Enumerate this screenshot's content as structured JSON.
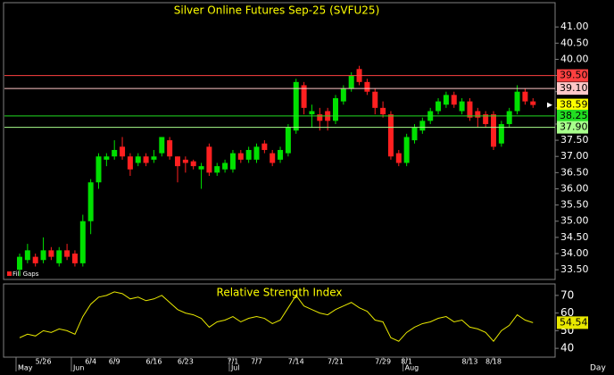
{
  "chart_data": [
    {
      "type": "candlestick",
      "title": "Silver Online Futures Sep-25 (SVFU25)",
      "annotation": "Fill Gaps",
      "x_label": "Day",
      "up_color": "#00e000",
      "down_color": "#ff2020",
      "open": [
        33.5,
        33.8,
        33.9,
        33.8,
        34.1,
        33.7,
        34.1,
        34.0,
        33.7,
        35.0,
        36.2,
        36.9,
        37.0,
        37.3,
        37.0,
        36.8,
        37.0,
        36.9,
        37.1,
        37.5,
        37.0,
        36.9,
        36.85,
        36.6,
        37.3,
        36.5,
        36.6,
        36.6,
        37.1,
        36.9,
        36.9,
        37.4,
        37.1,
        36.9,
        37.1,
        37.8,
        39.2,
        38.3,
        38.3,
        38.4,
        38.1,
        38.7,
        39.1,
        39.7,
        39.3,
        39.0,
        38.5,
        38.3,
        37.1,
        36.8,
        37.5,
        37.8,
        38.1,
        38.4,
        38.6,
        38.9,
        38.4,
        38.7,
        38.4,
        38.3,
        38.3,
        37.4,
        38.0,
        38.4,
        39.0,
        38.7
      ],
      "high": [
        34.0,
        34.3,
        34.0,
        34.5,
        34.2,
        34.2,
        34.3,
        34.1,
        35.2,
        36.3,
        37.1,
        37.1,
        37.5,
        37.6,
        37.1,
        37.1,
        37.1,
        37.2,
        37.6,
        37.6,
        37.0,
        37.0,
        36.9,
        36.8,
        37.4,
        36.8,
        36.9,
        37.2,
        37.2,
        37.3,
        37.4,
        37.5,
        37.2,
        37.3,
        38.0,
        39.4,
        39.3,
        38.6,
        38.5,
        38.5,
        38.9,
        39.2,
        39.6,
        39.8,
        39.4,
        39.1,
        38.7,
        38.4,
        37.2,
        37.7,
        38.0,
        38.2,
        38.5,
        38.8,
        39.0,
        39.0,
        38.8,
        38.8,
        38.5,
        38.4,
        38.4,
        38.1,
        38.5,
        39.2,
        39.1,
        38.8
      ],
      "low": [
        33.3,
        33.7,
        33.6,
        33.7,
        33.8,
        33.6,
        33.8,
        33.6,
        33.6,
        34.6,
        36.0,
        36.7,
        36.9,
        36.9,
        36.4,
        36.7,
        36.7,
        36.8,
        37.0,
        36.9,
        36.2,
        36.5,
        36.6,
        36.0,
        36.4,
        36.4,
        36.5,
        36.5,
        36.8,
        36.8,
        36.8,
        37.1,
        36.7,
        36.8,
        37.0,
        37.7,
        38.3,
        37.9,
        37.8,
        37.8,
        38.0,
        38.6,
        39.0,
        39.2,
        38.9,
        38.3,
        38.2,
        36.9,
        36.7,
        36.7,
        37.4,
        37.7,
        38.0,
        38.3,
        38.5,
        38.5,
        38.3,
        38.1,
        37.9,
        37.9,
        37.2,
        37.3,
        37.9,
        38.3,
        38.6,
        38.5
      ],
      "close": [
        33.9,
        34.1,
        33.7,
        34.1,
        33.9,
        34.1,
        33.9,
        33.7,
        35.0,
        36.2,
        37.0,
        37.0,
        37.2,
        37.0,
        36.6,
        37.0,
        36.8,
        37.0,
        37.6,
        37.0,
        36.7,
        36.8,
        36.7,
        36.7,
        36.5,
        36.7,
        36.8,
        37.1,
        36.9,
        37.2,
        37.3,
        37.2,
        36.8,
        37.2,
        37.9,
        39.3,
        38.5,
        38.4,
        38.1,
        38.1,
        38.8,
        39.1,
        39.5,
        39.3,
        39.0,
        38.5,
        38.3,
        37.0,
        36.8,
        37.6,
        37.9,
        38.1,
        38.4,
        38.7,
        38.9,
        38.6,
        38.7,
        38.2,
        38.2,
        38.0,
        37.3,
        38.0,
        38.4,
        39.0,
        38.7,
        38.59
      ],
      "ylim": [
        33.2,
        41.75
      ],
      "yticks": [
        {
          "value": 33.5,
          "label": "33.50"
        },
        {
          "value": 34,
          "label": "34.00"
        },
        {
          "value": 34.5,
          "label": "34.50"
        },
        {
          "value": 35,
          "label": "35.00"
        },
        {
          "value": 35.5,
          "label": "35.50"
        },
        {
          "value": 36,
          "label": "36.00"
        },
        {
          "value": 36.5,
          "label": "36.50"
        },
        {
          "value": 37,
          "label": "37.00"
        },
        {
          "value": 37.5,
          "label": "37.50"
        },
        {
          "value": 38,
          "label": "38.00"
        },
        {
          "value": 38.5,
          "label": "38.50"
        },
        {
          "value": 39,
          "label": "39.00"
        },
        {
          "value": 39.5,
          "label": "39.50"
        },
        {
          "value": 40,
          "label": "40.00"
        },
        {
          "value": 40.5,
          "label": "40.50"
        },
        {
          "value": 41,
          "label": "41.00"
        }
      ],
      "levels": [
        {
          "value": 39.5,
          "label": "39.50",
          "color": "#ff4040",
          "line": true
        },
        {
          "value": 39.1,
          "label": "39.10",
          "color": "#ffc8c8",
          "line": true
        },
        {
          "value": 38.59,
          "color": "#ffff00",
          "line": false
        },
        {
          "value": 38.25,
          "color": "#22dd22",
          "line": true
        },
        {
          "value": 37.9,
          "label": "37.90",
          "color": "#a8ff8c",
          "line": true
        }
      ],
      "xticks": [
        {
          "value": 3,
          "label": "5/26"
        },
        {
          "value": 9,
          "label": "6/4"
        },
        {
          "value": 12,
          "label": "6/9"
        },
        {
          "value": 17,
          "label": "6/16"
        },
        {
          "value": 21,
          "label": "6/23"
        },
        {
          "value": 27,
          "label": "7/1"
        },
        {
          "value": 30,
          "label": "7/7"
        },
        {
          "value": 35,
          "label": "7/14"
        },
        {
          "value": 40,
          "label": "7/21"
        },
        {
          "value": 46,
          "label": "7/29"
        },
        {
          "value": 49,
          "label": "8/1"
        },
        {
          "value": 57,
          "label": "8/13"
        },
        {
          "value": 60,
          "label": "8/18"
        }
      ],
      "month_ticks": [
        {
          "value": 0,
          "label": "May"
        },
        {
          "value": 7,
          "label": "Jun"
        },
        {
          "value": 27,
          "label": "Jul"
        },
        {
          "value": 49,
          "label": "Aug"
        }
      ]
    },
    {
      "type": "line",
      "title": "Relative Strength Index",
      "color": "#e8e800",
      "values": [
        46,
        48,
        47,
        50,
        49,
        51,
        50,
        48,
        58,
        65,
        69,
        70,
        72,
        71,
        68,
        69,
        67,
        68,
        70,
        66,
        62,
        60,
        59,
        57,
        52,
        55,
        56,
        58,
        55,
        57,
        58,
        57,
        54,
        56,
        63,
        70,
        64,
        62,
        60,
        59,
        62,
        64,
        66,
        63,
        61,
        56,
        55,
        46,
        44,
        49,
        52,
        54,
        55,
        57,
        58,
        55,
        56,
        52,
        51,
        49,
        44,
        50,
        53,
        59,
        56,
        54.54
      ],
      "ylim": [
        35,
        76.5
      ],
      "yticks": [
        40,
        50,
        60,
        70
      ]
    }
  ]
}
